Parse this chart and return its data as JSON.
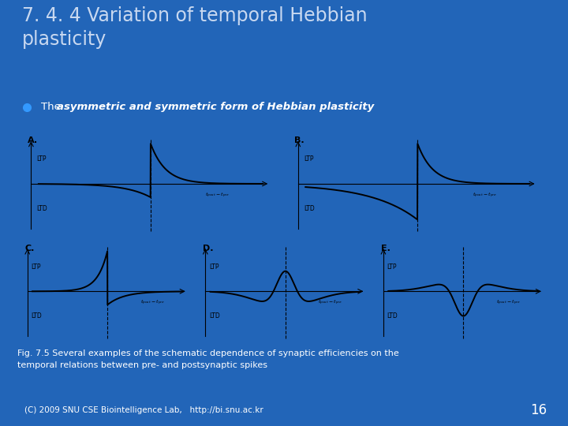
{
  "title": "7. 4. 4 Variation of temporal Hebbian\nplasticity",
  "bullet_prefix": "The ",
  "bullet_italic": "asymmetric and symmetric form of Hebbian plasticity",
  "fig_caption": "Fig. 7.5 Several examples of the schematic dependence of synaptic efficiencies on the\ntemporal relations between pre- and postsynaptic spikes",
  "footer_text": "(C) 2009 SNU CSE Biointelligence Lab,   http://bi.snu.ac.kr",
  "page_number": "16",
  "bg_color": "#2265b8",
  "panel_bg": "#f5f5f5",
  "title_color": "#c8d8f0",
  "bullet_color": "#ffffff",
  "caption_color": "#ffffff",
  "footer_bg": "#aa2200",
  "footer_color": "#ffffff",
  "page_num_color": "#ffffff",
  "panel_labels": [
    "A.",
    "B.",
    "C.",
    "D.",
    "E."
  ]
}
